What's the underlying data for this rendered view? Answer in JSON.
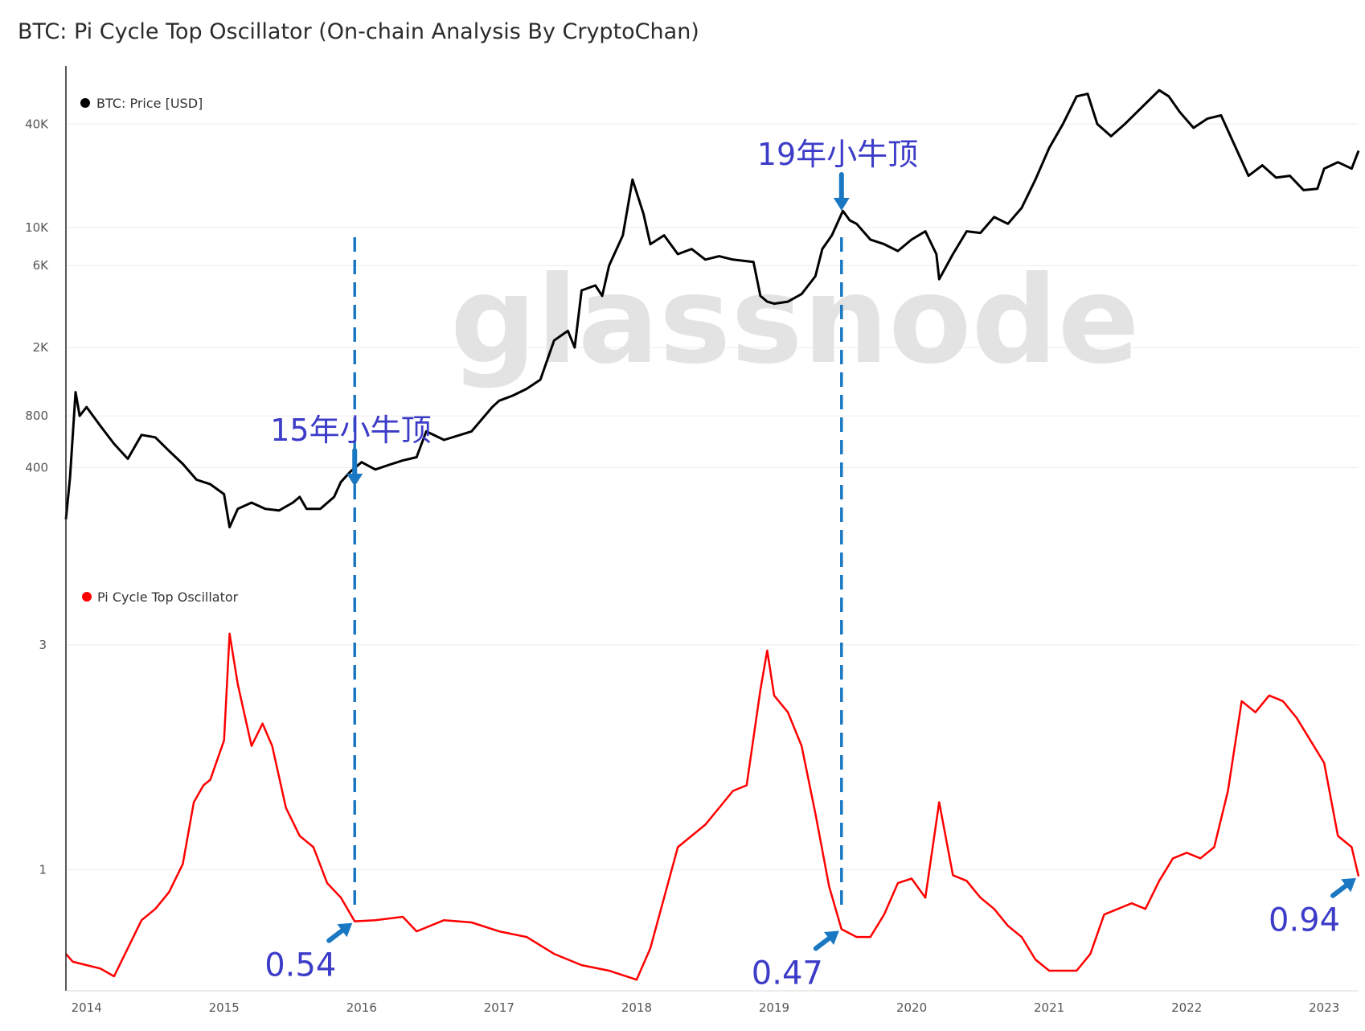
{
  "chart_data": {
    "type": "line",
    "title": "BTC: Pi Cycle Top Oscillator (On-chain Analysis By CryptoChan)",
    "watermark": "glassnode",
    "x_ticks": [
      "2014",
      "2015",
      "2016",
      "2017",
      "2018",
      "2019",
      "2020",
      "2021",
      "2022",
      "2023"
    ],
    "x_range": [
      2013.85,
      2023.25
    ],
    "panels": [
      {
        "id": "price",
        "scale": "log",
        "y_ticks": [
          {
            "label": "40K",
            "value": 40000
          },
          {
            "label": "10K",
            "value": 10000
          },
          {
            "label": "6K",
            "value": 6000
          },
          {
            "label": "2K",
            "value": 2000
          },
          {
            "label": "800",
            "value": 800
          },
          {
            "label": "400",
            "value": 400
          }
        ],
        "series": [
          {
            "name": "BTC: Price [USD]",
            "color": "#000000",
            "points": [
              [
                2013.85,
                200
              ],
              [
                2013.88,
                350
              ],
              [
                2013.92,
                1100
              ],
              [
                2013.95,
                800
              ],
              [
                2014.0,
                900
              ],
              [
                2014.1,
                700
              ],
              [
                2014.2,
                550
              ],
              [
                2014.3,
                450
              ],
              [
                2014.4,
                620
              ],
              [
                2014.5,
                600
              ],
              [
                2014.6,
                500
              ],
              [
                2014.7,
                420
              ],
              [
                2014.8,
                340
              ],
              [
                2014.9,
                320
              ],
              [
                2015.0,
                280
              ],
              [
                2015.04,
                180
              ],
              [
                2015.1,
                230
              ],
              [
                2015.2,
                250
              ],
              [
                2015.3,
                230
              ],
              [
                2015.4,
                225
              ],
              [
                2015.5,
                250
              ],
              [
                2015.55,
                270
              ],
              [
                2015.6,
                230
              ],
              [
                2015.7,
                230
              ],
              [
                2015.8,
                270
              ],
              [
                2015.85,
                330
              ],
              [
                2015.92,
                380
              ],
              [
                2016.0,
                430
              ],
              [
                2016.1,
                390
              ],
              [
                2016.2,
                415
              ],
              [
                2016.3,
                440
              ],
              [
                2016.4,
                460
              ],
              [
                2016.47,
                650
              ],
              [
                2016.6,
                580
              ],
              [
                2016.8,
                650
              ],
              [
                2016.95,
                900
              ],
              [
                2017.0,
                980
              ],
              [
                2017.1,
                1050
              ],
              [
                2017.2,
                1150
              ],
              [
                2017.3,
                1300
              ],
              [
                2017.4,
                2200
              ],
              [
                2017.5,
                2500
              ],
              [
                2017.55,
                2000
              ],
              [
                2017.6,
                4300
              ],
              [
                2017.7,
                4600
              ],
              [
                2017.75,
                4000
              ],
              [
                2017.8,
                6000
              ],
              [
                2017.9,
                9000
              ],
              [
                2017.97,
                19000
              ],
              [
                2018.05,
                12000
              ],
              [
                2018.1,
                8000
              ],
              [
                2018.2,
                9000
              ],
              [
                2018.3,
                7000
              ],
              [
                2018.4,
                7500
              ],
              [
                2018.5,
                6500
              ],
              [
                2018.6,
                6800
              ],
              [
                2018.7,
                6500
              ],
              [
                2018.85,
                6300
              ],
              [
                2018.9,
                4000
              ],
              [
                2018.95,
                3700
              ],
              [
                2019.0,
                3600
              ],
              [
                2019.1,
                3700
              ],
              [
                2019.2,
                4100
              ],
              [
                2019.3,
                5200
              ],
              [
                2019.35,
                7500
              ],
              [
                2019.42,
                9000
              ],
              [
                2019.5,
                12500
              ],
              [
                2019.55,
                11000
              ],
              [
                2019.6,
                10500
              ],
              [
                2019.7,
                8500
              ],
              [
                2019.8,
                8000
              ],
              [
                2019.9,
                7300
              ],
              [
                2020.0,
                8500
              ],
              [
                2020.1,
                9500
              ],
              [
                2020.18,
                7000
              ],
              [
                2020.2,
                5000
              ],
              [
                2020.3,
                7000
              ],
              [
                2020.4,
                9500
              ],
              [
                2020.5,
                9300
              ],
              [
                2020.6,
                11500
              ],
              [
                2020.7,
                10500
              ],
              [
                2020.8,
                13000
              ],
              [
                2020.9,
                19000
              ],
              [
                2021.0,
                29000
              ],
              [
                2021.1,
                40000
              ],
              [
                2021.2,
                58000
              ],
              [
                2021.28,
                60000
              ],
              [
                2021.35,
                40000
              ],
              [
                2021.45,
                34000
              ],
              [
                2021.55,
                40000
              ],
              [
                2021.65,
                48000
              ],
              [
                2021.8,
                63000
              ],
              [
                2021.87,
                58000
              ],
              [
                2021.95,
                47000
              ],
              [
                2022.05,
                38000
              ],
              [
                2022.15,
                43000
              ],
              [
                2022.25,
                45000
              ],
              [
                2022.35,
                30000
              ],
              [
                2022.45,
                20000
              ],
              [
                2022.55,
                23000
              ],
              [
                2022.65,
                19500
              ],
              [
                2022.75,
                20000
              ],
              [
                2022.85,
                16500
              ],
              [
                2022.95,
                16800
              ],
              [
                2023.0,
                22000
              ],
              [
                2023.1,
                24000
              ],
              [
                2023.2,
                22000
              ],
              [
                2023.25,
                28000
              ]
            ]
          }
        ],
        "annotations": [
          {
            "text": "15年小牛顶",
            "x": 2015.95
          },
          {
            "text": "19年小牛顶",
            "x": 2019.49
          }
        ]
      },
      {
        "id": "oscillator",
        "scale": "linear",
        "y_ticks": [
          {
            "label": "3",
            "value": 3
          },
          {
            "label": "1",
            "value": 1
          }
        ],
        "series": [
          {
            "name": "Pi Cycle Top Oscillator",
            "color": "#ff0000",
            "points": [
              [
                2013.85,
                0.25
              ],
              [
                2013.9,
                0.18
              ],
              [
                2014.0,
                0.15
              ],
              [
                2014.1,
                0.12
              ],
              [
                2014.2,
                0.05
              ],
              [
                2014.3,
                0.3
              ],
              [
                2014.4,
                0.55
              ],
              [
                2014.5,
                0.65
              ],
              [
                2014.6,
                0.8
              ],
              [
                2014.7,
                1.05
              ],
              [
                2014.78,
                1.6
              ],
              [
                2014.85,
                1.75
              ],
              [
                2014.9,
                1.8
              ],
              [
                2015.0,
                2.15
              ],
              [
                2015.04,
                3.1
              ],
              [
                2015.1,
                2.65
              ],
              [
                2015.2,
                2.1
              ],
              [
                2015.28,
                2.3
              ],
              [
                2015.35,
                2.1
              ],
              [
                2015.45,
                1.55
              ],
              [
                2015.55,
                1.3
              ],
              [
                2015.65,
                1.2
              ],
              [
                2015.75,
                0.88
              ],
              [
                2015.85,
                0.75
              ],
              [
                2015.95,
                0.54
              ],
              [
                2016.1,
                0.55
              ],
              [
                2016.3,
                0.58
              ],
              [
                2016.4,
                0.45
              ],
              [
                2016.6,
                0.55
              ],
              [
                2016.8,
                0.53
              ],
              [
                2017.0,
                0.45
              ],
              [
                2017.2,
                0.4
              ],
              [
                2017.4,
                0.25
              ],
              [
                2017.6,
                0.15
              ],
              [
                2017.8,
                0.1
              ],
              [
                2018.0,
                0.02
              ],
              [
                2018.1,
                0.3
              ],
              [
                2018.2,
                0.75
              ],
              [
                2018.3,
                1.2
              ],
              [
                2018.5,
                1.4
              ],
              [
                2018.6,
                1.55
              ],
              [
                2018.7,
                1.7
              ],
              [
                2018.8,
                1.75
              ],
              [
                2018.9,
                2.6
              ],
              [
                2018.95,
                2.95
              ],
              [
                2019.0,
                2.55
              ],
              [
                2019.1,
                2.4
              ],
              [
                2019.2,
                2.1
              ],
              [
                2019.3,
                1.5
              ],
              [
                2019.4,
                0.85
              ],
              [
                2019.49,
                0.47
              ],
              [
                2019.6,
                0.4
              ],
              [
                2019.7,
                0.4
              ],
              [
                2019.8,
                0.6
              ],
              [
                2019.9,
                0.88
              ],
              [
                2020.0,
                0.92
              ],
              [
                2020.1,
                0.75
              ],
              [
                2020.2,
                1.6
              ],
              [
                2020.3,
                0.95
              ],
              [
                2020.4,
                0.9
              ],
              [
                2020.5,
                0.75
              ],
              [
                2020.6,
                0.65
              ],
              [
                2020.7,
                0.5
              ],
              [
                2020.8,
                0.4
              ],
              [
                2020.9,
                0.2
              ],
              [
                2021.0,
                0.1
              ],
              [
                2021.2,
                0.1
              ],
              [
                2021.3,
                0.25
              ],
              [
                2021.4,
                0.6
              ],
              [
                2021.5,
                0.65
              ],
              [
                2021.6,
                0.7
              ],
              [
                2021.7,
                0.65
              ],
              [
                2021.8,
                0.9
              ],
              [
                2021.9,
                1.1
              ],
              [
                2022.0,
                1.15
              ],
              [
                2022.1,
                1.1
              ],
              [
                2022.2,
                1.2
              ],
              [
                2022.3,
                1.7
              ],
              [
                2022.4,
                2.5
              ],
              [
                2022.5,
                2.4
              ],
              [
                2022.6,
                2.55
              ],
              [
                2022.7,
                2.5
              ],
              [
                2022.8,
                2.35
              ],
              [
                2022.9,
                2.15
              ],
              [
                2023.0,
                1.95
              ],
              [
                2023.1,
                1.3
              ],
              [
                2023.2,
                1.2
              ],
              [
                2023.25,
                0.94
              ]
            ]
          }
        ],
        "annotations": [
          {
            "text": "0.54",
            "x": 2015.95,
            "value": 0.54
          },
          {
            "text": "0.47",
            "x": 2019.49,
            "value": 0.47
          },
          {
            "text": "0.94",
            "x": 2023.25,
            "value": 0.94
          }
        ]
      }
    ],
    "reference_lines": [
      {
        "x": 2015.95,
        "style": "dashed",
        "color": "#1a78c2"
      },
      {
        "x": 2019.49,
        "style": "dashed",
        "color": "#1a78c2"
      }
    ],
    "grid": true,
    "legend_position": "top-left"
  }
}
